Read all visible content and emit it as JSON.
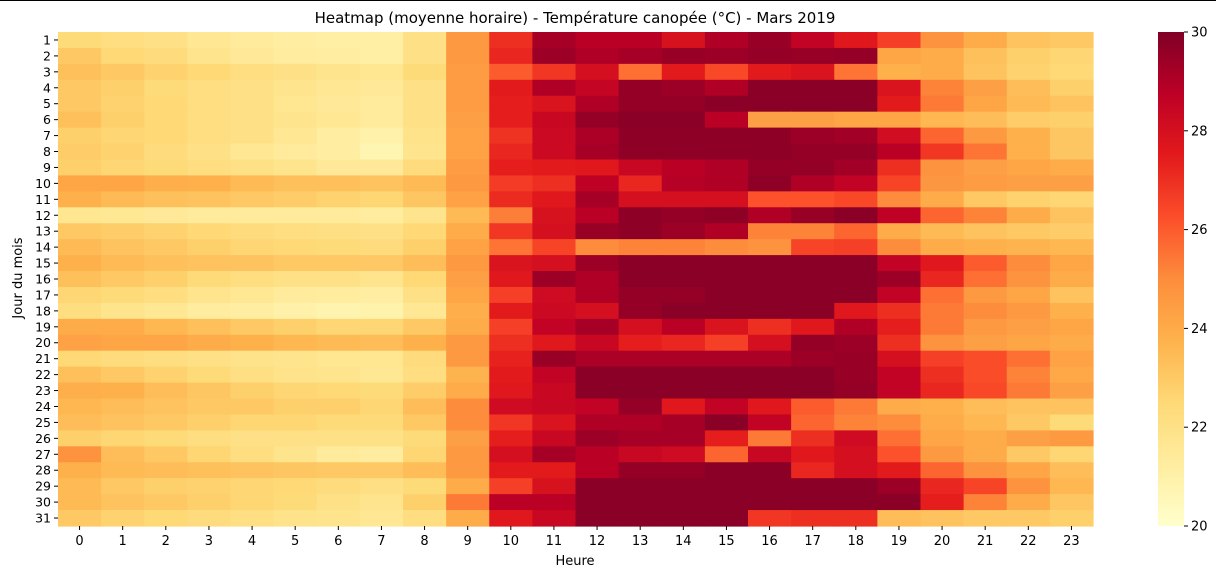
{
  "chart_data": {
    "type": "heatmap",
    "title": "Heatmap (moyenne horaire) - Température canopée (°C) - Mars 2019",
    "xlabel": "Heure",
    "ylabel": "Jour du mois",
    "x": [
      0,
      1,
      2,
      3,
      4,
      5,
      6,
      7,
      8,
      9,
      10,
      11,
      12,
      13,
      14,
      15,
      16,
      17,
      18,
      19,
      20,
      21,
      22,
      23
    ],
    "y": [
      1,
      2,
      3,
      4,
      5,
      6,
      7,
      8,
      9,
      10,
      11,
      12,
      13,
      14,
      15,
      16,
      17,
      18,
      19,
      20,
      21,
      22,
      23,
      24,
      25,
      26,
      27,
      28,
      29,
      30,
      31
    ],
    "colorbar": {
      "min": 20,
      "max": 30,
      "ticks": [
        20,
        22,
        24,
        26,
        28,
        30
      ],
      "colormap": "YlOrRd"
    },
    "values": [
      [
        22.4,
        22.2,
        22.0,
        21.6,
        21.4,
        21.2,
        21.1,
        21.1,
        22.0,
        24.6,
        27.0,
        29.2,
        28.8,
        28.8,
        27.9,
        29.0,
        29.5,
        28.6,
        27.6,
        26.6,
        24.8,
        24.0,
        23.2,
        23.0
      ],
      [
        23.0,
        22.5,
        22.3,
        21.8,
        21.5,
        21.3,
        21.2,
        21.1,
        22.0,
        24.6,
        27.2,
        29.4,
        29.0,
        29.2,
        29.5,
        29.4,
        29.6,
        29.5,
        29.6,
        24.2,
        24.0,
        23.3,
        22.8,
        22.6
      ],
      [
        23.3,
        23.0,
        22.7,
        22.5,
        22.2,
        22.0,
        21.8,
        21.7,
        22.4,
        24.5,
        26.0,
        26.8,
        28.0,
        25.6,
        27.5,
        26.4,
        27.5,
        27.8,
        25.5,
        23.8,
        24.0,
        23.2,
        22.7,
        22.5
      ],
      [
        23.0,
        22.8,
        22.4,
        22.2,
        22.0,
        21.8,
        21.6,
        21.5,
        22.0,
        24.5,
        27.5,
        29.0,
        28.5,
        29.6,
        29.4,
        29.0,
        29.8,
        29.8,
        29.8,
        27.8,
        25.2,
        24.4,
        23.4,
        22.8
      ],
      [
        23.0,
        22.7,
        22.5,
        22.2,
        22.0,
        21.7,
        21.5,
        21.4,
        22.0,
        24.5,
        27.4,
        27.8,
        29.0,
        29.6,
        29.6,
        29.8,
        29.8,
        29.8,
        29.8,
        27.5,
        25.4,
        24.2,
        23.5,
        23.2
      ],
      [
        23.3,
        22.8,
        22.5,
        22.2,
        22.0,
        21.8,
        21.6,
        21.4,
        22.0,
        24.4,
        27.4,
        28.4,
        29.6,
        29.8,
        29.8,
        28.8,
        24.4,
        24.4,
        24.2,
        24.2,
        23.6,
        23.4,
        22.9,
        22.8
      ],
      [
        22.8,
        22.6,
        22.5,
        22.2,
        22.0,
        21.6,
        21.2,
        21.0,
        21.9,
        24.3,
        26.9,
        28.3,
        29.1,
        29.7,
        29.7,
        29.7,
        29.7,
        29.4,
        29.3,
        28.1,
        25.8,
        24.6,
        23.8,
        23.1
      ],
      [
        22.9,
        22.7,
        22.3,
        22.0,
        21.6,
        21.4,
        21.2,
        20.7,
        21.8,
        24.3,
        27.2,
        28.3,
        29.2,
        29.7,
        29.7,
        29.7,
        29.7,
        29.6,
        29.6,
        28.8,
        26.8,
        25.5,
        23.8,
        23.1
      ],
      [
        22.8,
        22.6,
        22.4,
        22.2,
        22.0,
        21.8,
        21.5,
        21.5,
        22.3,
        24.5,
        27.4,
        27.5,
        27.6,
        28.4,
        28.8,
        29.0,
        29.6,
        29.6,
        29.3,
        27.0,
        24.8,
        24.4,
        24.2,
        24.0
      ],
      [
        24.2,
        24.2,
        23.9,
        23.8,
        23.5,
        23.3,
        23.3,
        23.2,
        23.5,
        24.6,
        26.7,
        27.0,
        28.7,
        27.2,
        28.9,
        29.0,
        29.7,
        29.0,
        28.6,
        26.5,
        24.7,
        24.5,
        24.4,
        24.4
      ],
      [
        23.8,
        23.5,
        23.3,
        23.2,
        23.0,
        22.9,
        22.7,
        22.6,
        23.1,
        24.3,
        27.1,
        27.6,
        29.2,
        28.0,
        28.0,
        28.0,
        26.2,
        26.2,
        26.4,
        25.0,
        24.0,
        23.0,
        22.7,
        22.6
      ],
      [
        21.7,
        21.6,
        21.5,
        21.4,
        21.4,
        21.4,
        21.4,
        21.3,
        21.8,
        23.5,
        25.3,
        27.9,
        28.8,
        29.7,
        29.6,
        29.7,
        29.0,
        29.5,
        29.8,
        28.7,
        25.8,
        25.2,
        24.0,
        23.2
      ],
      [
        23.0,
        22.9,
        22.7,
        22.5,
        22.3,
        22.2,
        22.1,
        22.0,
        22.5,
        24.0,
        26.8,
        28.0,
        29.5,
        29.7,
        29.4,
        29.0,
        25.2,
        25.2,
        25.8,
        24.0,
        23.5,
        23.2,
        23.0,
        22.9
      ],
      [
        23.5,
        23.2,
        23.0,
        22.8,
        22.6,
        22.5,
        22.4,
        22.3,
        22.8,
        24.3,
        25.5,
        26.5,
        25.0,
        25.2,
        25.2,
        25.0,
        24.8,
        26.5,
        26.6,
        25.0,
        24.0,
        23.8,
        23.7,
        23.6
      ],
      [
        23.8,
        23.5,
        23.3,
        23.2,
        23.2,
        23.0,
        23.0,
        23.0,
        23.4,
        24.6,
        27.8,
        28.0,
        29.4,
        29.8,
        29.8,
        29.8,
        29.8,
        29.8,
        29.8,
        28.6,
        27.6,
        26.0,
        25.0,
        24.2
      ],
      [
        23.3,
        23.0,
        22.8,
        22.4,
        22.2,
        22.0,
        22.0,
        21.8,
        22.5,
        24.4,
        27.6,
        29.4,
        29.0,
        29.8,
        29.8,
        29.8,
        29.8,
        29.8,
        29.8,
        29.4,
        27.2,
        25.6,
        24.8,
        24.0
      ],
      [
        22.6,
        22.4,
        22.2,
        21.8,
        21.6,
        21.4,
        21.3,
        21.2,
        22.0,
        24.2,
        26.6,
        28.2,
        29.0,
        29.6,
        29.6,
        29.8,
        29.8,
        29.8,
        29.8,
        28.6,
        25.6,
        24.6,
        24.2,
        23.2
      ],
      [
        22.2,
        21.8,
        21.6,
        21.3,
        21.2,
        21.0,
        20.8,
        20.9,
        21.6,
        23.9,
        27.5,
        28.3,
        28.0,
        29.6,
        29.8,
        29.8,
        29.8,
        29.8,
        27.6,
        27.0,
        25.4,
        25.0,
        24.6,
        23.8
      ],
      [
        24.0,
        24.0,
        23.6,
        23.3,
        23.0,
        22.8,
        22.6,
        22.6,
        23.0,
        24.0,
        26.6,
        28.6,
        29.2,
        28.0,
        28.8,
        27.8,
        27.0,
        27.6,
        29.0,
        27.4,
        25.4,
        24.6,
        24.4,
        24.2
      ],
      [
        24.3,
        24.2,
        24.2,
        24.0,
        23.8,
        23.6,
        23.5,
        23.4,
        23.8,
        24.6,
        27.0,
        27.6,
        28.4,
        27.4,
        27.2,
        26.6,
        28.0,
        29.6,
        29.4,
        27.0,
        24.8,
        24.4,
        24.2,
        24.0
      ],
      [
        22.5,
        22.3,
        22.2,
        22.0,
        21.9,
        21.8,
        21.7,
        21.7,
        22.3,
        24.6,
        27.3,
        29.5,
        29.1,
        29.1,
        29.1,
        29.1,
        29.1,
        29.4,
        29.5,
        28.0,
        26.6,
        26.3,
        25.6,
        24.3
      ],
      [
        23.3,
        23.0,
        22.7,
        22.4,
        22.1,
        21.9,
        21.8,
        21.6,
        22.2,
        23.7,
        27.5,
        28.6,
        29.8,
        29.8,
        29.8,
        29.8,
        29.8,
        29.8,
        29.5,
        28.6,
        27.0,
        26.3,
        25.2,
        24.1
      ],
      [
        23.9,
        23.8,
        23.4,
        23.1,
        22.8,
        22.6,
        22.5,
        22.4,
        22.9,
        24.0,
        27.6,
        28.4,
        29.8,
        29.8,
        29.8,
        29.8,
        29.8,
        29.8,
        29.6,
        28.6,
        27.2,
        26.4,
        25.4,
        24.4
      ],
      [
        23.6,
        23.4,
        23.2,
        23.0,
        23.0,
        22.8,
        22.8,
        22.6,
        23.4,
        25.0,
        28.2,
        28.4,
        28.6,
        29.6,
        27.6,
        28.6,
        27.6,
        26.0,
        25.4,
        24.0,
        23.8,
        23.4,
        23.2,
        23.2
      ],
      [
        23.4,
        23.2,
        23.0,
        22.8,
        22.6,
        22.6,
        22.4,
        22.4,
        23.0,
        25.0,
        26.8,
        27.8,
        29.0,
        29.0,
        29.2,
        29.8,
        28.6,
        25.8,
        25.2,
        25.0,
        24.0,
        23.6,
        23.0,
        22.4
      ],
      [
        22.8,
        22.6,
        22.4,
        22.2,
        22.0,
        22.0,
        22.0,
        22.0,
        22.4,
        24.4,
        27.4,
        28.4,
        29.4,
        29.2,
        29.2,
        27.4,
        25.4,
        27.0,
        28.2,
        25.6,
        24.2,
        24.0,
        24.4,
        24.6
      ],
      [
        24.8,
        23.4,
        23.0,
        22.6,
        22.2,
        21.8,
        21.4,
        21.3,
        22.6,
        24.6,
        28.0,
        29.2,
        28.8,
        28.4,
        28.2,
        25.8,
        28.4,
        27.6,
        28.0,
        26.2,
        24.6,
        24.0,
        23.0,
        22.6
      ],
      [
        23.8,
        23.5,
        23.4,
        23.3,
        23.2,
        23.1,
        23.0,
        23.0,
        23.4,
        24.6,
        27.5,
        27.5,
        28.8,
        29.6,
        29.6,
        29.8,
        29.8,
        27.2,
        28.0,
        27.5,
        25.8,
        24.8,
        24.2,
        23.4
      ],
      [
        23.5,
        23.0,
        22.8,
        22.7,
        22.6,
        22.5,
        22.3,
        22.1,
        22.4,
        24.0,
        26.6,
        27.9,
        29.8,
        29.8,
        29.8,
        29.8,
        29.8,
        29.8,
        29.8,
        29.4,
        27.2,
        26.5,
        24.8,
        23.6
      ],
      [
        23.5,
        23.2,
        23.0,
        22.8,
        22.6,
        22.4,
        22.0,
        21.8,
        22.8,
        25.4,
        28.8,
        28.8,
        29.8,
        29.8,
        29.8,
        29.8,
        29.8,
        29.8,
        29.8,
        29.8,
        27.4,
        25.2,
        24.0,
        23.1
      ],
      [
        23.0,
        22.7,
        22.5,
        22.3,
        22.1,
        21.9,
        21.8,
        21.6,
        22.2,
        24.0,
        27.6,
        28.4,
        29.8,
        29.8,
        29.8,
        29.8,
        26.8,
        27.0,
        27.0,
        23.4,
        23.2,
        23.0,
        23.0,
        22.8
      ]
    ]
  }
}
